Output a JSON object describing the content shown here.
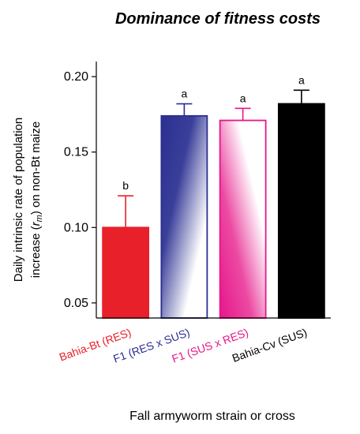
{
  "chart_data": {
    "type": "bar",
    "title": "Dominance of fitness costs",
    "ylabel_line1": "Daily intrinsic rate of population",
    "ylabel_line2_prefix": "increase (",
    "ylabel_line2_var": "r",
    "ylabel_line2_sub": "m",
    "ylabel_line2_suffix": ") on non-Bt maize",
    "xlabel": "Fall armyworm strain or cross",
    "ylim": [
      0.04,
      0.21
    ],
    "yticks": [
      0.05,
      0.1,
      0.15,
      0.2
    ],
    "ytick_labels": [
      "0.05",
      "0.10",
      "0.15",
      "0.20"
    ],
    "categories": [
      "Bahia-Bt (RES)",
      "F1 (RES x SUS)",
      "F1 (SUS x RES)",
      "Bahia-Cv (SUS)"
    ],
    "values": [
      0.1,
      0.174,
      0.171,
      0.182
    ],
    "errors": [
      0.021,
      0.008,
      0.008,
      0.009
    ],
    "significance": [
      "b",
      "a",
      "a",
      "a"
    ],
    "colors": [
      "#e8202a",
      "#2b2f8f",
      "#e6168a",
      "#000000"
    ],
    "fills": [
      "solid",
      "gradient",
      "gradient",
      "solid"
    ]
  }
}
